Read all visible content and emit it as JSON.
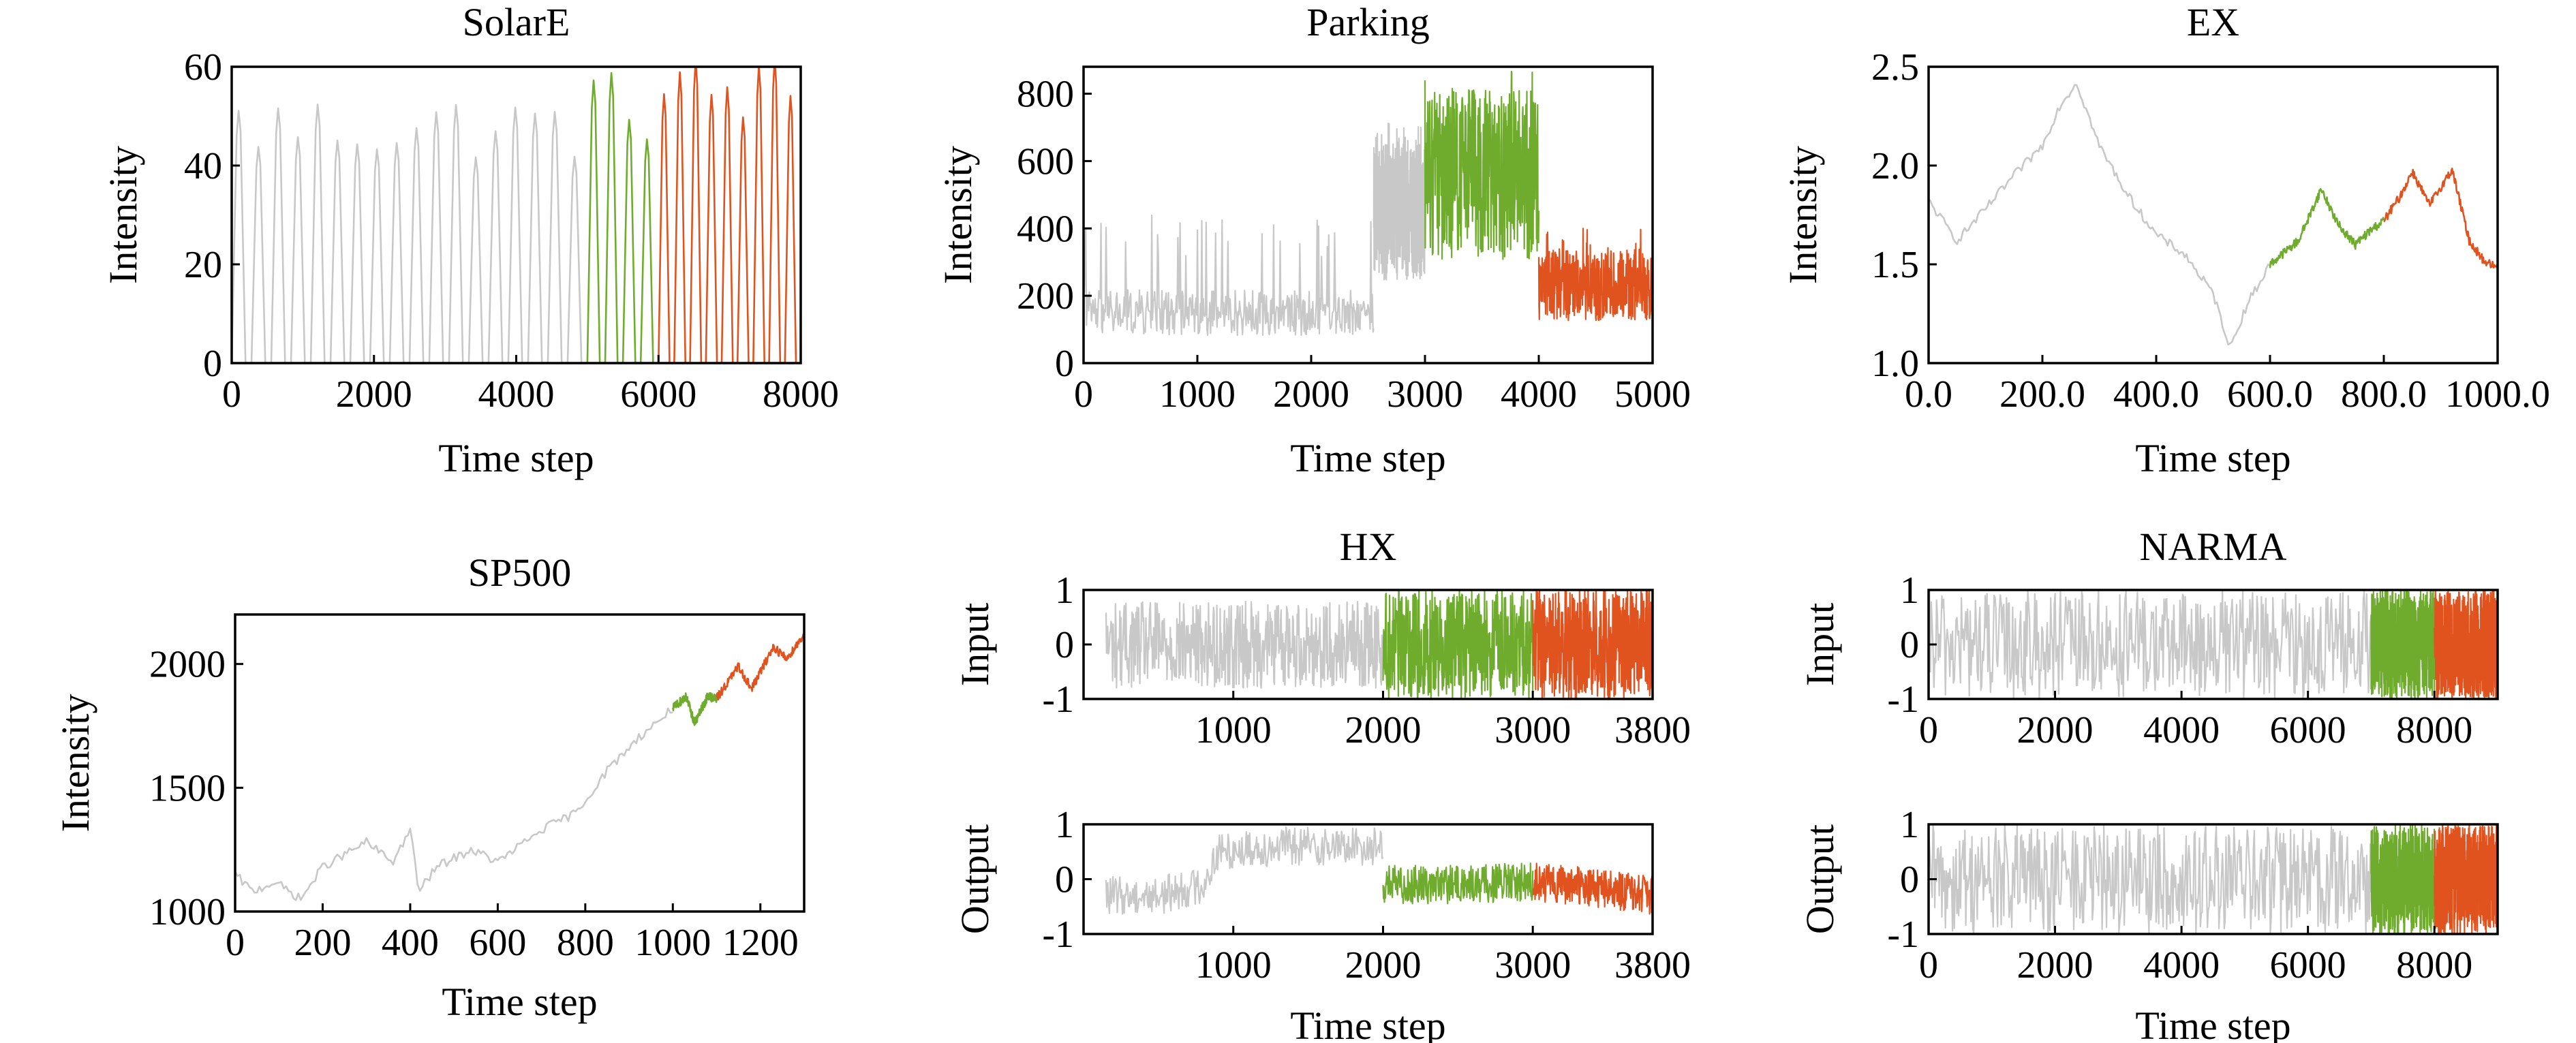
{
  "colors": {
    "train": "#c8c8c8",
    "validation": "#6fac2e",
    "test": "#e0531f"
  },
  "chart_data": [
    {
      "id": "solare",
      "type": "line",
      "title": "SolarE",
      "xlabel": "Time step",
      "ylabel": "Intensity",
      "xlim": [
        0,
        8000
      ],
      "ylim": [
        0,
        60
      ],
      "xticks": [
        0,
        2000,
        4000,
        6000,
        8000
      ],
      "yticks": [
        0,
        20,
        40,
        60
      ],
      "segments": [
        {
          "role": "train",
          "x_range": [
            0,
            5000
          ],
          "pattern": "daily-peaks",
          "peak_approx": 48,
          "cycles": 18
        },
        {
          "role": "validation",
          "x_range": [
            5000,
            6000
          ],
          "pattern": "daily-peaks",
          "peak_approx": 52,
          "cycles": 4
        },
        {
          "role": "test",
          "x_range": [
            6000,
            8000
          ],
          "pattern": "daily-peaks",
          "peak_approx": 55,
          "cycles": 9
        }
      ]
    },
    {
      "id": "parking",
      "type": "line",
      "title": "Parking",
      "xlabel": "Time step",
      "ylabel": "Intensity",
      "xlim": [
        0,
        5000
      ],
      "ylim": [
        0,
        880
      ],
      "xticks": [
        0,
        1000,
        2000,
        3000,
        4000,
        5000
      ],
      "yticks": [
        0,
        200,
        400,
        600,
        800
      ],
      "segments": [
        {
          "role": "train",
          "x_range": [
            0,
            2550
          ],
          "pattern": "noise-spikes",
          "level": 150,
          "spike_max": 440
        },
        {
          "role": "train",
          "x_range": [
            2550,
            3000
          ],
          "pattern": "noise-spikes",
          "level": 450,
          "spike_max": 740
        },
        {
          "role": "validation",
          "x_range": [
            3000,
            4000
          ],
          "pattern": "noise-spikes",
          "level": 560,
          "spike_max": 870
        },
        {
          "role": "test",
          "x_range": [
            4000,
            5000
          ],
          "pattern": "noise-spikes",
          "level": 230,
          "spike_max": 400
        }
      ]
    },
    {
      "id": "ex",
      "type": "line",
      "title": "EX",
      "xlabel": "Time step",
      "ylabel": "Intensity",
      "xlim": [
        0,
        1000
      ],
      "ylim": [
        1.0,
        2.5
      ],
      "xticks": [
        0,
        200,
        400,
        600,
        800,
        1000
      ],
      "yticks": [
        1.0,
        1.5,
        2.0,
        2.5
      ],
      "tick_format": "1dp",
      "segments": [
        {
          "role": "train",
          "x_range": [
            0,
            600
          ],
          "pattern": "random-walk",
          "anchors": [
            [
              0,
              1.82
            ],
            [
              50,
              1.62
            ],
            [
              100,
              1.78
            ],
            [
              150,
              1.95
            ],
            [
              200,
              2.1
            ],
            [
              230,
              2.3
            ],
            [
              260,
              2.42
            ],
            [
              300,
              2.1
            ],
            [
              350,
              1.85
            ],
            [
              400,
              1.65
            ],
            [
              450,
              1.55
            ],
            [
              500,
              1.35
            ],
            [
              530,
              1.08
            ],
            [
              560,
              1.3
            ],
            [
              600,
              1.5
            ]
          ]
        },
        {
          "role": "validation",
          "x_range": [
            600,
            800
          ],
          "pattern": "random-walk",
          "anchors": [
            [
              600,
              1.5
            ],
            [
              650,
              1.62
            ],
            [
              690,
              1.88
            ],
            [
              720,
              1.7
            ],
            [
              750,
              1.6
            ],
            [
              780,
              1.68
            ],
            [
              800,
              1.72
            ]
          ]
        },
        {
          "role": "test",
          "x_range": [
            800,
            1000
          ],
          "pattern": "random-walk",
          "anchors": [
            [
              800,
              1.72
            ],
            [
              830,
              1.85
            ],
            [
              850,
              1.97
            ],
            [
              880,
              1.8
            ],
            [
              920,
              1.98
            ],
            [
              950,
              1.62
            ],
            [
              975,
              1.52
            ],
            [
              1000,
              1.48
            ]
          ]
        }
      ]
    },
    {
      "id": "sp500",
      "type": "line",
      "title": "SP500",
      "xlabel": "Time step",
      "ylabel": "Intensity",
      "xlim": [
        0,
        1300
      ],
      "ylim": [
        1000,
        2200
      ],
      "xticks": [
        0,
        200,
        400,
        600,
        800,
        1000,
        1200
      ],
      "yticks": [
        1000,
        1500,
        2000
      ],
      "segments": [
        {
          "role": "train",
          "x_range": [
            0,
            1000
          ],
          "pattern": "random-walk",
          "anchors": [
            [
              0,
              1150
            ],
            [
              40,
              1080
            ],
            [
              90,
              1120
            ],
            [
              150,
              1050
            ],
            [
              200,
              1180
            ],
            [
              300,
              1280
            ],
            [
              360,
              1200
            ],
            [
              400,
              1330
            ],
            [
              420,
              1080
            ],
            [
              460,
              1180
            ],
            [
              540,
              1250
            ],
            [
              600,
              1200
            ],
            [
              700,
              1330
            ],
            [
              780,
              1400
            ],
            [
              850,
              1570
            ],
            [
              920,
              1700
            ],
            [
              1000,
              1820
            ]
          ]
        },
        {
          "role": "validation",
          "x_range": [
            1000,
            1100
          ],
          "pattern": "random-walk",
          "anchors": [
            [
              1000,
              1820
            ],
            [
              1030,
              1870
            ],
            [
              1050,
              1760
            ],
            [
              1080,
              1870
            ],
            [
              1100,
              1860
            ]
          ]
        },
        {
          "role": "test",
          "x_range": [
            1100,
            1300
          ],
          "pattern": "random-walk",
          "anchors": [
            [
              1100,
              1860
            ],
            [
              1150,
              1990
            ],
            [
              1180,
              1900
            ],
            [
              1230,
              2070
            ],
            [
              1260,
              2020
            ],
            [
              1300,
              2120
            ]
          ]
        }
      ]
    },
    {
      "id": "hx-input",
      "type": "line",
      "title": "HX",
      "xlabel": "",
      "ylabel": "Input",
      "xlim": [
        0,
        3800
      ],
      "ylim": [
        -1,
        1
      ],
      "xticks": [
        1000,
        2000,
        3000,
        3800
      ],
      "yticks": [
        -1,
        0,
        1
      ],
      "segments": [
        {
          "role": "train",
          "x_range": [
            150,
            2000
          ],
          "pattern": "dense-noise",
          "amp": 0.8
        },
        {
          "role": "validation",
          "x_range": [
            2000,
            3000
          ],
          "pattern": "dense-noise",
          "amp": 1.0
        },
        {
          "role": "test",
          "x_range": [
            3000,
            3800
          ],
          "pattern": "dense-noise",
          "amp": 1.0
        }
      ]
    },
    {
      "id": "hx-output",
      "type": "line",
      "title": "",
      "xlabel": "Time step",
      "ylabel": "Output",
      "xlim": [
        0,
        3800
      ],
      "ylim": [
        -1,
        1
      ],
      "xticks": [
        1000,
        2000,
        3000,
        3800
      ],
      "yticks": [
        -1,
        0,
        1
      ],
      "segments": [
        {
          "role": "train",
          "x_range": [
            150,
            2000
          ],
          "pattern": "wander-noise",
          "amp": 0.35,
          "anchors": [
            [
              150,
              -0.3
            ],
            [
              500,
              -0.3
            ],
            [
              800,
              -0.1
            ],
            [
              900,
              0.5
            ],
            [
              1300,
              0.6
            ],
            [
              1600,
              0.6
            ],
            [
              2000,
              0.6
            ]
          ]
        },
        {
          "role": "validation",
          "x_range": [
            2000,
            3000
          ],
          "pattern": "wander-noise",
          "amp": 0.35,
          "anchors": [
            [
              2000,
              -0.1
            ],
            [
              2500,
              -0.1
            ],
            [
              3000,
              -0.05
            ]
          ]
        },
        {
          "role": "test",
          "x_range": [
            3000,
            3800
          ],
          "pattern": "wander-noise",
          "amp": 0.35,
          "anchors": [
            [
              3000,
              -0.05
            ],
            [
              3400,
              -0.15
            ],
            [
              3800,
              -0.3
            ]
          ]
        }
      ]
    },
    {
      "id": "narma-input",
      "type": "line",
      "title": "NARMA",
      "xlabel": "",
      "ylabel": "Input",
      "xlim": [
        0,
        9000
      ],
      "ylim": [
        -1,
        1
      ],
      "xticks": [
        0,
        2000,
        4000,
        6000,
        8000
      ],
      "yticks": [
        -1,
        0,
        1
      ],
      "segments": [
        {
          "role": "train",
          "x_range": [
            0,
            7000
          ],
          "pattern": "dense-noise",
          "amp": 1.0
        },
        {
          "role": "validation",
          "x_range": [
            7000,
            8000
          ],
          "pattern": "dense-noise",
          "amp": 1.0
        },
        {
          "role": "test",
          "x_range": [
            8000,
            9000
          ],
          "pattern": "dense-noise",
          "amp": 1.0
        }
      ]
    },
    {
      "id": "narma-output",
      "type": "line",
      "title": "",
      "xlabel": "Time step",
      "ylabel": "Output",
      "xlim": [
        0,
        9000
      ],
      "ylim": [
        -1,
        1
      ],
      "xticks": [
        0,
        2000,
        4000,
        6000,
        8000
      ],
      "yticks": [
        -1,
        0,
        1
      ],
      "segments": [
        {
          "role": "train",
          "x_range": [
            0,
            7000
          ],
          "pattern": "dense-noise",
          "amp": 1.0
        },
        {
          "role": "validation",
          "x_range": [
            7000,
            8000
          ],
          "pattern": "dense-noise",
          "amp": 1.0
        },
        {
          "role": "test",
          "x_range": [
            8000,
            9000
          ],
          "pattern": "dense-noise",
          "amp": 1.0
        }
      ]
    }
  ]
}
